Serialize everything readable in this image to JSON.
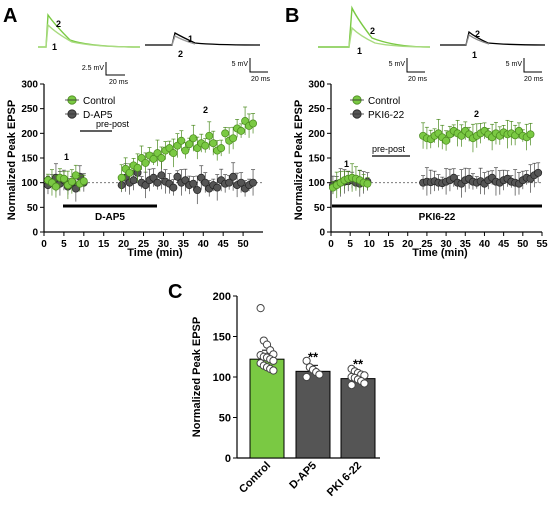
{
  "colors": {
    "control": "#7ac943",
    "control_dark": "#4a8a1e",
    "treatment": "#555555",
    "treatment_dark": "#222222",
    "black": "#000000",
    "light_trace": "#a9db80"
  },
  "panels": {
    "a": {
      "letter": "A",
      "trace_labels": {
        "control_1": "1",
        "control_2": "2",
        "treat_1": "1",
        "treat_2": "2"
      },
      "scalebars": {
        "control_v": "2.5 mV",
        "control_t": "20 ms",
        "treat_v": "5 mV",
        "treat_t": "20 ms"
      },
      "prepost_label": "pre-post",
      "drug_label": "D-AP5",
      "period_labels": {
        "p1": "1",
        "p2": "2"
      }
    },
    "b": {
      "letter": "B",
      "trace_labels": {
        "control_1": "1",
        "control_2": "2",
        "treat_1": "1",
        "treat_2": "2"
      },
      "scalebars": {
        "control_v": "5 mV",
        "control_t": "20 ms",
        "treat_v": "5 mV",
        "treat_t": "20 ms"
      },
      "prepost_label": "pre-post",
      "drug_label": "PKI6-22",
      "period_labels": {
        "p1": "1",
        "p2": "2"
      }
    },
    "c": {
      "letter": "C"
    }
  },
  "chart_data": [
    {
      "id": "A",
      "type": "scatter",
      "xlabel": "Time (min)",
      "ylabel": "Normalized Peak EPSP",
      "xlim": [
        0,
        55
      ],
      "ylim": [
        0,
        300
      ],
      "xticks": [
        "0",
        "5",
        "10",
        "15",
        "20",
        "25",
        "30",
        "35",
        "40",
        "45",
        "50"
      ],
      "yticks": [
        "0",
        "50",
        "100",
        "150",
        "200",
        "250",
        "300"
      ],
      "baseline": 100,
      "legend": {
        "position": "top-left"
      },
      "series": [
        {
          "name": "Control",
          "x": [
            1,
            2,
            3,
            4,
            5,
            6,
            7,
            8,
            9,
            10,
            19.5,
            20.5,
            21.5,
            22.5,
            23.5,
            24.5,
            25.5,
            26.5,
            27.5,
            28.5,
            29.5,
            30.5,
            31.5,
            32.5,
            33.5,
            34.5,
            35.5,
            36.5,
            37.5,
            38.5,
            39.5,
            40.5,
            41.5,
            42.5,
            43.5,
            44.5,
            45.5,
            46.5,
            47.5,
            48.5,
            49.5,
            50.5,
            51.5,
            52.5
          ],
          "y": [
            105,
            100,
            92,
            110,
            108,
            95,
            102,
            115,
            98,
            103,
            110,
            128,
            120,
            135,
            130,
            150,
            140,
            155,
            148,
            160,
            150,
            165,
            170,
            160,
            175,
            185,
            165,
            178,
            190,
            170,
            180,
            175,
            195,
            180,
            165,
            170,
            200,
            185,
            190,
            210,
            205,
            225,
            215,
            220
          ]
        },
        {
          "name": "D-AP5",
          "x": [
            1,
            2,
            3,
            4,
            5,
            6,
            7,
            8,
            9,
            10,
            19.5,
            20.5,
            21.5,
            22.5,
            23.5,
            24.5,
            25.5,
            26.5,
            27.5,
            28.5,
            29.5,
            30.5,
            31.5,
            32.5,
            33.5,
            34.5,
            35.5,
            36.5,
            37.5,
            38.5,
            39.5,
            40.5,
            41.5,
            42.5,
            43.5,
            44.5,
            45.5,
            46.5,
            47.5,
            48.5,
            49.5,
            50.5,
            51.5,
            52.5
          ],
          "y": [
            95,
            102,
            110,
            98,
            105,
            92,
            100,
            88,
            112,
            100,
            95,
            110,
            100,
            105,
            120,
            100,
            95,
            105,
            110,
            100,
            115,
            102,
            98,
            90,
            112,
            100,
            105,
            95,
            98,
            85,
            110,
            100,
            88,
            95,
            90,
            105,
            98,
            100,
            112,
            95,
            100,
            88,
            95,
            100
          ]
        }
      ]
    },
    {
      "id": "B",
      "type": "scatter",
      "xlabel": "Time (min)",
      "ylabel": "Normalized Peak EPSP",
      "xlim": [
        0,
        55
      ],
      "ylim": [
        0,
        300
      ],
      "xticks": [
        "0",
        "5",
        "10",
        "15",
        "20",
        "25",
        "30",
        "35",
        "40",
        "45",
        "50",
        "55"
      ],
      "yticks": [
        "0",
        "50",
        "100",
        "150",
        "200",
        "250",
        "300"
      ],
      "baseline": 100,
      "legend": {
        "position": "top-left"
      },
      "series": [
        {
          "name": "Control",
          "x": [
            0.5,
            1.5,
            2.5,
            3.5,
            4.5,
            5.5,
            6.5,
            7.5,
            8.5,
            9.5,
            24,
            25,
            26,
            27,
            28,
            29,
            30,
            31,
            32,
            33,
            34,
            35,
            36,
            37,
            38,
            39,
            40,
            41,
            42,
            43,
            44,
            45,
            46,
            47,
            48,
            49,
            50,
            51,
            52
          ],
          "y": [
            90,
            95,
            100,
            105,
            108,
            110,
            108,
            105,
            100,
            98,
            195,
            190,
            188,
            195,
            200,
            192,
            185,
            198,
            205,
            200,
            195,
            205,
            198,
            190,
            195,
            200,
            205,
            198,
            192,
            200,
            195,
            202,
            198,
            200,
            196,
            205,
            195,
            192,
            198
          ]
        },
        {
          "name": "PKI6-22",
          "x": [
            0.5,
            1.5,
            2.5,
            3.5,
            4.5,
            5.5,
            6.5,
            7.5,
            8.5,
            9.5,
            24,
            25,
            26,
            27,
            28,
            29,
            30,
            31,
            32,
            33,
            34,
            35,
            36,
            37,
            38,
            39,
            40,
            41,
            42,
            43,
            44,
            45,
            46,
            47,
            48,
            49,
            50,
            51,
            52,
            53,
            54
          ],
          "y": [
            95,
            98,
            100,
            102,
            103,
            105,
            100,
            98,
            100,
            102,
            100,
            102,
            101,
            103,
            100,
            99,
            102,
            105,
            110,
            100,
            98,
            105,
            108,
            102,
            100,
            103,
            98,
            105,
            110,
            102,
            100,
            105,
            108,
            102,
            100,
            98,
            105,
            110,
            108,
            115,
            120
          ]
        }
      ]
    },
    {
      "id": "C",
      "type": "bar",
      "ylabel": "Normalized Peak EPSP",
      "ylim": [
        0,
        200
      ],
      "yticks": [
        "0",
        "50",
        "100",
        "150",
        "200"
      ],
      "categories": [
        "Control",
        "D-AP5",
        "PKI 6-22"
      ],
      "values": [
        122,
        107,
        98
      ],
      "significance": [
        "",
        "**",
        "**"
      ],
      "points": [
        [
          185,
          145,
          140,
          133,
          128,
          127,
          125,
          124,
          122,
          120,
          117,
          114,
          112,
          110,
          108
        ],
        [
          120,
          112,
          109,
          106,
          103,
          100
        ],
        [
          110,
          107,
          105,
          103,
          102,
          100,
          99,
          97,
          95,
          92,
          90
        ]
      ]
    }
  ]
}
